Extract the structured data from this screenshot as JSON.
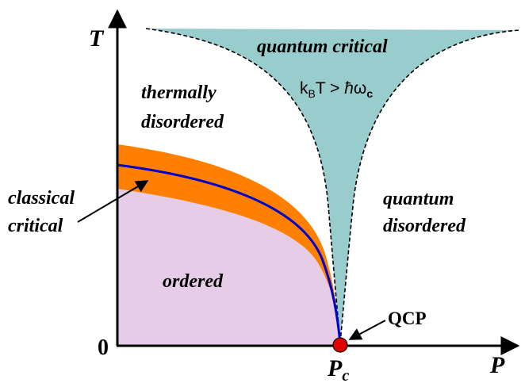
{
  "axes": {
    "y_label": "T",
    "x_label": "P",
    "origin_label": "0",
    "critical_point_tick": "P",
    "critical_point_tick_sub": "c"
  },
  "regions": {
    "quantum_critical": "quantum critical",
    "thermally_line1": "thermally",
    "thermally_line2": "disordered",
    "quantum_disordered_line1": "quantum",
    "quantum_disordered_line2": "disordered",
    "ordered": "ordered",
    "classical_line1": "classical",
    "classical_line2": "critical"
  },
  "formula": {
    "k": "k",
    "b": "B",
    "t": "T > ",
    "hbar": "ħ",
    "omega": "ω",
    "c": "c"
  },
  "markers": {
    "qcp": "QCP"
  },
  "colors": {
    "quantum_critical_fill": "#99cccc",
    "classical_band": "#ff8000",
    "ordered_fill": "#e6cce6",
    "phase_boundary": "#0000cc",
    "qcp_dot": "#e00000",
    "axes": "#000000"
  }
}
